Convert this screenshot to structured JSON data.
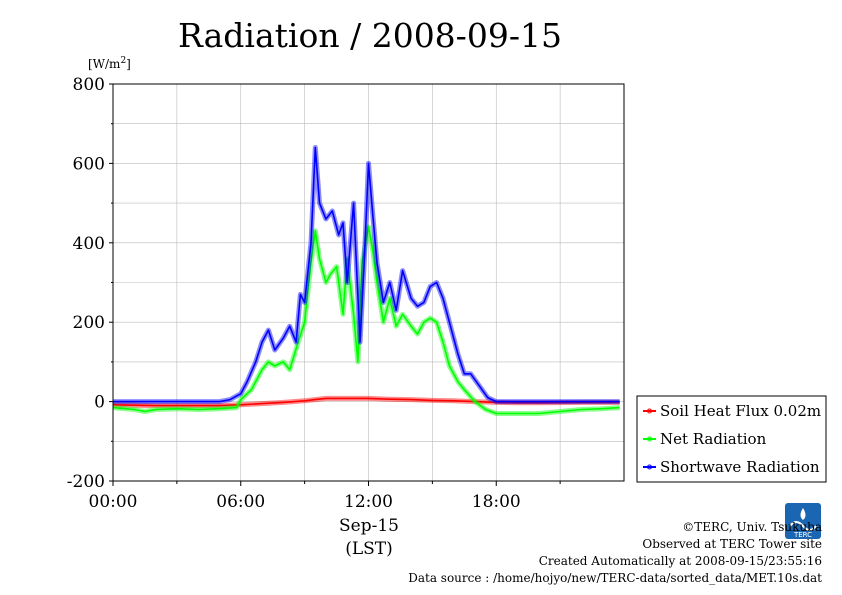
{
  "chart_data": {
    "type": "line",
    "title": "Radiation / 2008-09-15",
    "ylabel_unit": "[W/m2]",
    "xlabel_date": "Sep-15",
    "xlabel": "(LST)",
    "xlim": [
      0,
      24
    ],
    "ylim": [
      -200,
      800
    ],
    "x_ticks": [
      {
        "value": 0,
        "label": "00:00"
      },
      {
        "value": 6,
        "label": "06:00"
      },
      {
        "value": 12,
        "label": "12:00"
      },
      {
        "value": 18,
        "label": "18:00"
      }
    ],
    "y_ticks": [
      {
        "value": -200,
        "label": "-200"
      },
      {
        "value": 0,
        "label": "0"
      },
      {
        "value": 200,
        "label": "200"
      },
      {
        "value": 400,
        "label": "400"
      },
      {
        "value": 600,
        "label": "600"
      },
      {
        "value": 800,
        "label": "800"
      }
    ],
    "grid": true,
    "legend_position": "right",
    "series": [
      {
        "name": "Soil Heat Flux 0.02m",
        "color": "#ff0000",
        "x": [
          0,
          2,
          4,
          5,
          6,
          7,
          8,
          9,
          9.5,
          10,
          11,
          12,
          13,
          14,
          15,
          16,
          17,
          18,
          19,
          20,
          22,
          23.8
        ],
        "y": [
          -8,
          -10,
          -10,
          -10,
          -8,
          -5,
          -2,
          2,
          5,
          8,
          8,
          8,
          6,
          5,
          3,
          2,
          0,
          -2,
          -3,
          -3,
          -2,
          -2
        ]
      },
      {
        "name": "Net Radiation",
        "color": "#00ff00",
        "x": [
          0,
          1,
          1.5,
          2,
          3,
          4,
          5,
          5.8,
          6,
          6.5,
          7,
          7.3,
          7.6,
          8,
          8.3,
          8.7,
          9,
          9.3,
          9.5,
          9.7,
          10,
          10.2,
          10.5,
          10.8,
          11,
          11.3,
          11.5,
          11.7,
          12,
          12.2,
          12.4,
          12.7,
          13,
          13.3,
          13.6,
          14,
          14.3,
          14.6,
          14.9,
          15.2,
          15.5,
          15.8,
          16.2,
          16.5,
          17,
          17.5,
          18,
          19,
          20,
          21,
          22,
          23,
          23.8
        ],
        "y": [
          -15,
          -20,
          -25,
          -20,
          -18,
          -20,
          -18,
          -15,
          5,
          30,
          80,
          100,
          90,
          100,
          80,
          150,
          200,
          350,
          430,
          360,
          300,
          320,
          340,
          220,
          360,
          220,
          100,
          350,
          440,
          380,
          300,
          200,
          260,
          190,
          220,
          190,
          170,
          200,
          210,
          200,
          150,
          90,
          50,
          30,
          0,
          -20,
          -30,
          -30,
          -30,
          -25,
          -20,
          -18,
          -15
        ]
      },
      {
        "name": "Shortwave Radiation",
        "color": "#0000ff",
        "x": [
          0,
          2,
          4,
          5,
          5.5,
          6,
          6.3,
          6.7,
          7,
          7.3,
          7.6,
          8,
          8.3,
          8.6,
          8.8,
          9,
          9.3,
          9.5,
          9.7,
          10,
          10.3,
          10.6,
          10.8,
          11,
          11.3,
          11.6,
          11.8,
          12,
          12.2,
          12.4,
          12.7,
          13,
          13.3,
          13.6,
          14,
          14.3,
          14.6,
          14.9,
          15.2,
          15.5,
          15.8,
          16.2,
          16.5,
          16.8,
          17.2,
          17.6,
          18,
          20,
          22,
          23.8
        ],
        "y": [
          0,
          0,
          0,
          0,
          5,
          20,
          50,
          100,
          150,
          180,
          130,
          160,
          190,
          150,
          270,
          250,
          400,
          640,
          500,
          460,
          480,
          420,
          450,
          300,
          500,
          150,
          350,
          600,
          470,
          350,
          250,
          300,
          230,
          330,
          260,
          240,
          250,
          290,
          300,
          260,
          200,
          120,
          70,
          70,
          40,
          10,
          0,
          0,
          0,
          0
        ]
      }
    ]
  },
  "footer": {
    "credit": "©TERC, Univ. Tsukuba",
    "site": "Observed at TERC Tower site",
    "created": "Created Automatically at 2008-09-15/23:55:16",
    "source": "Data source : /home/hojyo/new/TERC-data/sorted_data/MET.10s.dat"
  },
  "logo": {
    "label": "TERC",
    "color": "#1a66b3"
  }
}
